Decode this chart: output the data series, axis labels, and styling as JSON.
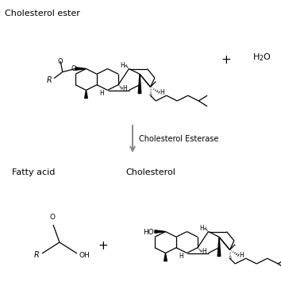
{
  "background_color": "#ffffff",
  "line_color": "#000000",
  "gray_color": "#888888",
  "text_color": "#000000",
  "label_cholesterol_ester": "Cholesterol ester",
  "label_fatty_acid": "Fatty acid",
  "label_cholesterol": "Cholesterol",
  "label_enzyme": "Cholesterol Esterase",
  "label_plus_top": "+",
  "label_water": "H₂O",
  "label_plus_bottom": "+",
  "figsize": [
    3.54,
    3.6
  ],
  "dpi": 100
}
